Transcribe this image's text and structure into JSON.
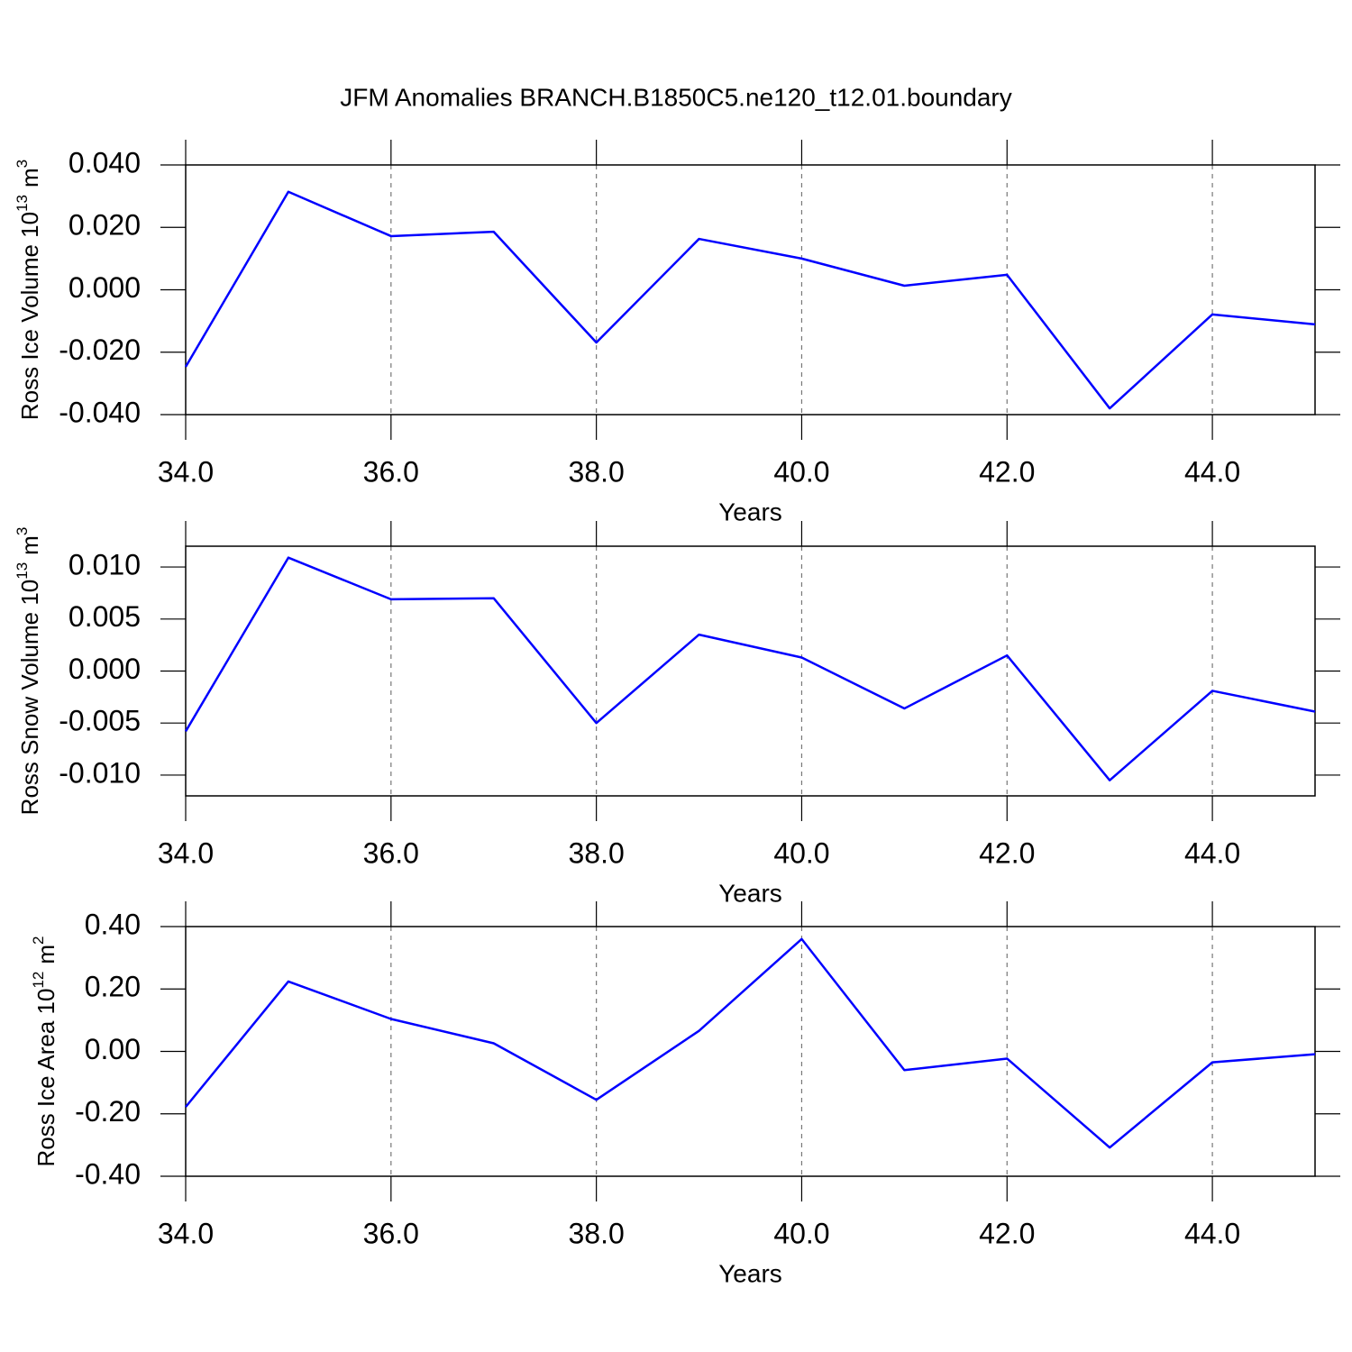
{
  "chart_data": [
    {
      "type": "line",
      "title": "JFM Anomalies BRANCH.B1850C5.ne120_t12.01.boundary",
      "ylabel_parts": [
        "Ross Ice Volume 10",
        "13",
        "m",
        "3"
      ],
      "xlabel": "Years",
      "x": [
        34,
        35,
        36,
        37,
        38,
        39,
        40,
        41,
        42,
        43,
        44,
        45
      ],
      "series": [
        {
          "color": "#0000ff",
          "values": [
            -0.0247,
            0.0314,
            0.0172,
            0.0186,
            -0.0169,
            0.0163,
            0.01,
            0.0013,
            0.0048,
            -0.038,
            -0.0079,
            -0.0111
          ]
        }
      ],
      "xlim": [
        34,
        45
      ],
      "ylim": [
        -0.04,
        0.04
      ],
      "xticks": [
        {
          "value": 34,
          "label": "34.0"
        },
        {
          "value": 36,
          "label": "36.0"
        },
        {
          "value": 38,
          "label": "38.0"
        },
        {
          "value": 40,
          "label": "40.0"
        },
        {
          "value": 42,
          "label": "42.0"
        },
        {
          "value": 44,
          "label": "44.0"
        }
      ],
      "yticks": [
        {
          "value": 0.04,
          "label": "0.040"
        },
        {
          "value": 0.02,
          "label": "0.020"
        },
        {
          "value": 0,
          "label": "0.000"
        },
        {
          "value": -0.02,
          "label": "-0.020"
        },
        {
          "value": -0.04,
          "label": "-0.040"
        }
      ],
      "grid": true
    },
    {
      "type": "line",
      "ylabel_parts": [
        "Ross Snow Volume 10",
        "13",
        "m",
        "3"
      ],
      "xlabel": "Years",
      "x": [
        34,
        35,
        36,
        37,
        38,
        39,
        40,
        41,
        42,
        43,
        44,
        45
      ],
      "series": [
        {
          "color": "#0000ff",
          "values": [
            -0.0058,
            0.0109,
            0.0069,
            0.007,
            -0.005,
            0.0035,
            0.0013,
            -0.0036,
            0.0015,
            -0.0105,
            -0.0019,
            -0.0039
          ]
        }
      ],
      "xlim": [
        34,
        45
      ],
      "ylim": [
        -0.012,
        0.012
      ],
      "xticks": [
        {
          "value": 34,
          "label": "34.0"
        },
        {
          "value": 36,
          "label": "36.0"
        },
        {
          "value": 38,
          "label": "38.0"
        },
        {
          "value": 40,
          "label": "40.0"
        },
        {
          "value": 42,
          "label": "42.0"
        },
        {
          "value": 44,
          "label": "44.0"
        }
      ],
      "yticks": [
        {
          "value": 0.01,
          "label": "0.010"
        },
        {
          "value": 0.005,
          "label": "0.005"
        },
        {
          "value": 0,
          "label": "0.000"
        },
        {
          "value": -0.005,
          "label": "-0.005"
        },
        {
          "value": -0.01,
          "label": "-0.010"
        }
      ],
      "grid": true
    },
    {
      "type": "line",
      "ylabel_parts": [
        "Ross Ice Area 10",
        "12",
        "m",
        "2"
      ],
      "xlabel": "Years",
      "x": [
        34,
        35,
        36,
        37,
        38,
        39,
        40,
        41,
        42,
        43,
        44,
        45
      ],
      "series": [
        {
          "color": "#0000ff",
          "values": [
            -0.178,
            0.224,
            0.104,
            0.026,
            -0.155,
            0.066,
            0.36,
            -0.06,
            -0.023,
            -0.308,
            -0.035,
            -0.009
          ]
        }
      ],
      "xlim": [
        34,
        45
      ],
      "ylim": [
        -0.4,
        0.4
      ],
      "xticks": [
        {
          "value": 34,
          "label": "34.0"
        },
        {
          "value": 36,
          "label": "36.0"
        },
        {
          "value": 38,
          "label": "38.0"
        },
        {
          "value": 40,
          "label": "40.0"
        },
        {
          "value": 42,
          "label": "42.0"
        },
        {
          "value": 44,
          "label": "44.0"
        }
      ],
      "yticks": [
        {
          "value": 0.4,
          "label": "0.40"
        },
        {
          "value": 0.2,
          "label": "0.20"
        },
        {
          "value": 0,
          "label": "0.00"
        },
        {
          "value": -0.2,
          "label": "-0.20"
        },
        {
          "value": -0.4,
          "label": "-0.40"
        }
      ],
      "grid": true
    }
  ]
}
